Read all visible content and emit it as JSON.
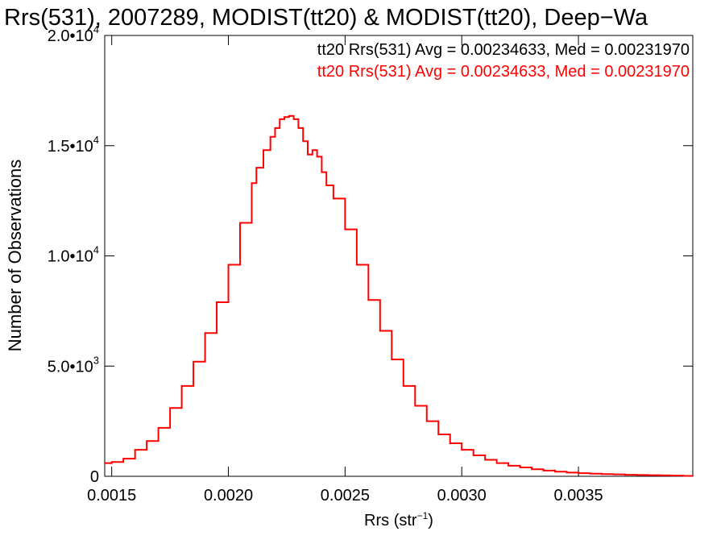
{
  "chart_data": {
    "type": "line",
    "title": "Rrs(531), 2007289, MODIST(tt20) & MODIST(tt20), Deep−Wa",
    "xlabel": "Rrs (str",
    "xlabel_sup": "−1",
    "xlabel_close": ")",
    "ylabel": "Number of Observations",
    "xlim": [
      0.00147,
      0.00399
    ],
    "ylim": [
      0,
      20000
    ],
    "x_ticks": [
      {
        "value": 0.0015,
        "label": "0.0015"
      },
      {
        "value": 0.002,
        "label": "0.0020"
      },
      {
        "value": 0.0025,
        "label": "0.0025"
      },
      {
        "value": 0.003,
        "label": "0.0030"
      },
      {
        "value": 0.0035,
        "label": "0.0035"
      }
    ],
    "y_ticks": [
      {
        "value": 0,
        "label": "0",
        "sup": ""
      },
      {
        "value": 5000,
        "label": "5.0•10",
        "sup": "3"
      },
      {
        "value": 10000,
        "label": "1.0•10",
        "sup": "4"
      },
      {
        "value": 15000,
        "label": "1.5•10",
        "sup": "4"
      },
      {
        "value": 20000,
        "label": "2.0•10",
        "sup": "4"
      }
    ],
    "legend_position": "top-right",
    "legend": [
      {
        "label": "tt20 Rrs(531) Avg = 0.00234633, Med = 0.00231970",
        "color": "#000000"
      },
      {
        "label": "tt20 Rrs(531) Avg = 0.00234633, Med = 0.00231970",
        "color": "#ff0000"
      }
    ],
    "series": [
      {
        "color": "#ff0000",
        "style": "step",
        "x": [
          0.00147,
          0.0015,
          0.00155,
          0.0016,
          0.00165,
          0.0017,
          0.00175,
          0.0018,
          0.00185,
          0.0019,
          0.00195,
          0.002,
          0.00205,
          0.0021,
          0.00212,
          0.00215,
          0.00218,
          0.0022,
          0.00222,
          0.00224,
          0.00226,
          0.00228,
          0.0023,
          0.00232,
          0.00234,
          0.00236,
          0.00238,
          0.0024,
          0.00242,
          0.00245,
          0.0025,
          0.00255,
          0.0026,
          0.00265,
          0.0027,
          0.00275,
          0.0028,
          0.00285,
          0.0029,
          0.00295,
          0.003,
          0.00305,
          0.0031,
          0.00315,
          0.0032,
          0.00325,
          0.0033,
          0.00335,
          0.0034,
          0.00345,
          0.0035,
          0.00355,
          0.0036,
          0.00365,
          0.0037,
          0.00375,
          0.0038,
          0.00385,
          0.0039,
          0.00395,
          0.00399
        ],
        "y": [
          600,
          650,
          800,
          1200,
          1600,
          2200,
          3100,
          4100,
          5200,
          6500,
          7900,
          9600,
          11500,
          13300,
          14000,
          14800,
          15400,
          15800,
          16200,
          16300,
          16350,
          16200,
          15800,
          15200,
          14600,
          14800,
          14500,
          13800,
          13200,
          12600,
          11200,
          9600,
          8000,
          6600,
          5300,
          4100,
          3200,
          2500,
          1900,
          1500,
          1200,
          950,
          750,
          600,
          480,
          400,
          320,
          260,
          210,
          170,
          140,
          120,
          100,
          85,
          70,
          60,
          50,
          40,
          30,
          20,
          15
        ]
      }
    ]
  }
}
